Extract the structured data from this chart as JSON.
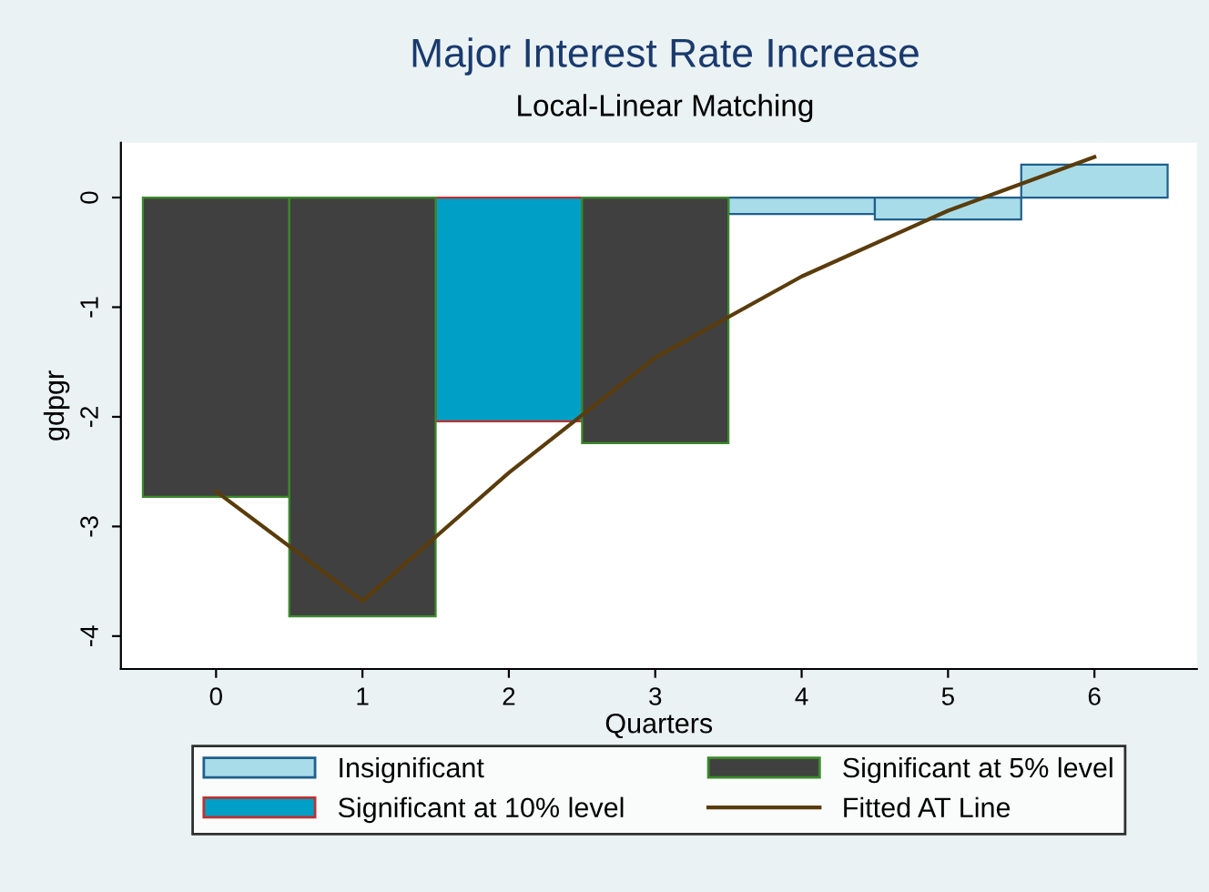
{
  "chart_data": {
    "type": "bar",
    "title": "Major Interest Rate Increase",
    "subtitle": "Local-Linear Matching",
    "xlabel": "Quarters",
    "ylabel": "gdpgr",
    "x": [
      0,
      1,
      2,
      3,
      4,
      5,
      6
    ],
    "series": [
      {
        "name": "Insignificant",
        "color": "#a8dce9",
        "values": [
          null,
          null,
          null,
          null,
          -0.15,
          -0.2,
          0.3
        ]
      },
      {
        "name": "Significant at 10% level",
        "color": "#00a0c6",
        "values": [
          null,
          null,
          -2.04,
          null,
          null,
          null,
          null
        ]
      },
      {
        "name": "Significant at 5% level",
        "color": "#404040",
        "values": [
          -2.73,
          -3.82,
          null,
          -2.24,
          null,
          null,
          null
        ]
      },
      {
        "name": "Fitted AT Line",
        "type": "line",
        "color": "#5a3c0c",
        "values": [
          -2.68,
          -3.68,
          -2.51,
          -1.46,
          -0.72,
          -0.12,
          0.37
        ]
      }
    ],
    "xlim": [
      -0.65,
      6.7
    ],
    "xticks": [
      0,
      1,
      2,
      3,
      4,
      5,
      6
    ],
    "ylim": [
      -4.3,
      0.5
    ],
    "yticks": [
      -4,
      -3,
      -2,
      -1,
      0
    ],
    "grid": false,
    "legend": "bottom",
    "marker": "none",
    "line_style": "solid"
  }
}
